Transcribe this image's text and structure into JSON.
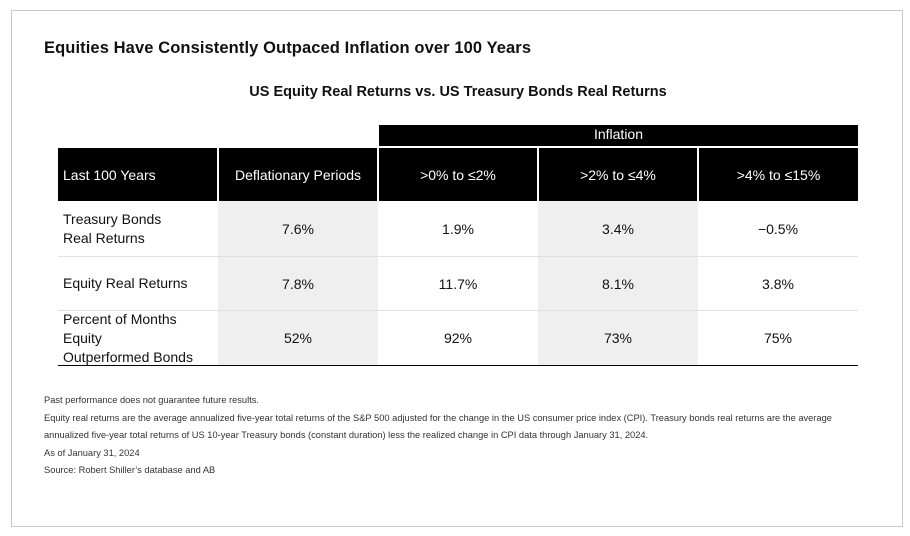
{
  "title": "Equities Have Consistently Outpaced Inflation over 100 Years",
  "chart_data": {
    "type": "table",
    "title": "US Equity Real Returns vs. US Treasury Bonds Real Returns",
    "group_header": "Inflation",
    "columns": [
      "Last 100 Years",
      "Deflationary Periods",
      ">0% to ≤2%",
      ">2% to ≤4%",
      ">4% to ≤15%"
    ],
    "rows": [
      {
        "label_lines": [
          "Treasury Bonds",
          "Real Returns"
        ],
        "values": [
          "7.6%",
          "1.9%",
          "3.4%",
          "−0.5%"
        ]
      },
      {
        "label_lines": [
          "Equity Real Returns"
        ],
        "values": [
          "7.8%",
          "11.7%",
          "8.1%",
          "3.8%"
        ]
      },
      {
        "label_lines": [
          "Percent of Months Equity",
          "Outperformed Bonds"
        ],
        "values": [
          "52%",
          "92%",
          "73%",
          "75%"
        ]
      }
    ]
  },
  "notes": [
    "Past performance does not guarantee future results.",
    "Equity real returns are the average annualized five-year total returns of the S&P 500 adjusted for the change in the US consumer price index (CPI). Treasury bonds real returns are the average",
    "annualized five-year total returns of US 10-year Treasury bonds (constant duration) less the realized change in CPI data through January 31, 2024.",
    "As of January 31, 2024",
    "Source: Robert Shiller’s database and AB"
  ],
  "colors": {
    "header_bg": "#000000",
    "header_text": "#ffffff",
    "shade": "#efefef",
    "frame": "#c9c9c9"
  }
}
